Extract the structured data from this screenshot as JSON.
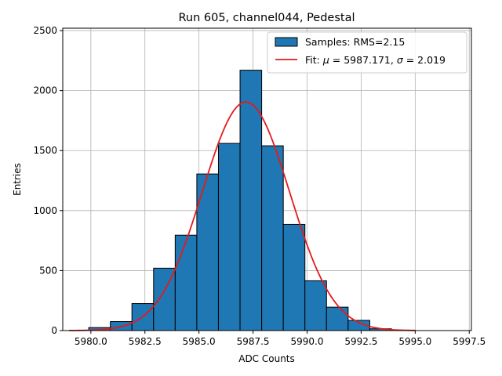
{
  "chart_data": {
    "type": "bar",
    "title": "Run 605, channel044, Pedestal",
    "xlabel": "ADC Counts",
    "ylabel": "Entries",
    "xlim": [
      5978.7,
      5997.6
    ],
    "ylim": [
      0,
      2520
    ],
    "x_ticks": [
      5980.0,
      5982.5,
      5985.0,
      5987.5,
      5990.0,
      5992.5,
      5995.0,
      5997.5
    ],
    "x_tick_labels": [
      "5980.0",
      "5982.5",
      "5985.0",
      "5987.5",
      "5990.0",
      "5992.5",
      "5995.0",
      "5997.5"
    ],
    "y_ticks": [
      0,
      500,
      1000,
      1500,
      2000,
      2500
    ],
    "y_tick_labels": [
      "0",
      "500",
      "1000",
      "1500",
      "2000",
      "2500"
    ],
    "grid": true,
    "legend_position": "top-right",
    "histogram": {
      "name": "Samples: RMS=2.15",
      "color": "#1f77b4",
      "edge_color": "#000000",
      "bin_edges": [
        5979.9,
        5980.9,
        5981.9,
        5982.9,
        5983.9,
        5984.9,
        5985.9,
        5986.9,
        5987.9,
        5988.9,
        5989.9,
        5990.9,
        5991.9,
        5992.9,
        5993.9,
        5994.9,
        5995.9,
        5996.9
      ],
      "counts": [
        25,
        75,
        225,
        520,
        795,
        1305,
        1560,
        2170,
        1540,
        885,
        415,
        195,
        85,
        15,
        3,
        0,
        0
      ]
    },
    "fit": {
      "name": "Fit: μ = 5987.171, σ = 2.019",
      "label_prefix": "Fit: ",
      "mu_symbol": "μ",
      "mu_text": " = 5987.171, ",
      "sigma_symbol": "σ",
      "sigma_text": " = 2.019",
      "color": "#e41a1c",
      "mu": 5987.171,
      "sigma": 2.019,
      "amplitude": 1905,
      "x_range": [
        5979.0,
        5995.0
      ]
    }
  }
}
